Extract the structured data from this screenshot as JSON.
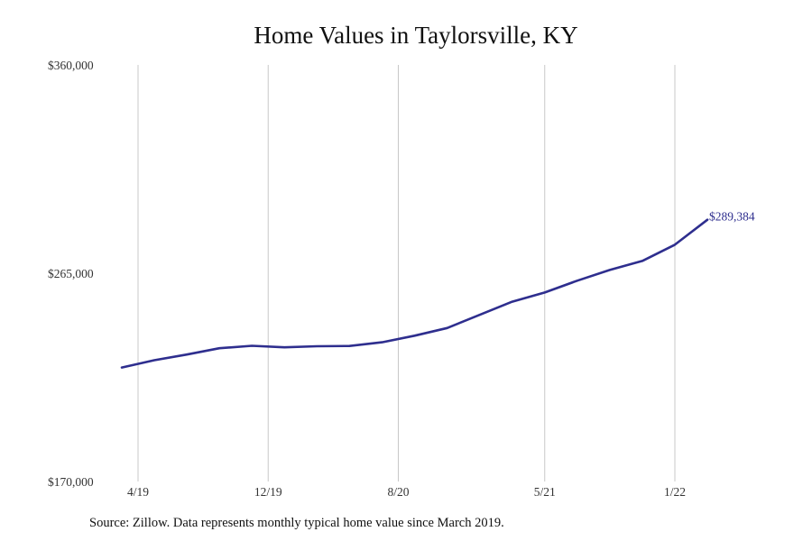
{
  "chart_data": {
    "type": "line",
    "title": "Home Values in Taylorsville, KY",
    "xlabel": "",
    "ylabel": "",
    "ylim": [
      170000,
      360000
    ],
    "y_ticks": [
      "$360,000",
      "$265,000",
      "$170,000"
    ],
    "y_tick_values": [
      360000,
      265000,
      170000
    ],
    "x_ticks": [
      "4/19",
      "12/19",
      "8/20",
      "5/21",
      "1/22"
    ],
    "x_tick_dates": [
      "2019-04",
      "2019-12",
      "2020-08",
      "2021-05",
      "2022-01"
    ],
    "grid": "vertical",
    "line_color": "#2e2e8e",
    "gridline_color": "#c8c8c8",
    "series": [
      {
        "x": [
          "2019-03",
          "2019-05",
          "2019-07",
          "2019-09",
          "2019-11",
          "2020-01",
          "2020-03",
          "2020-05",
          "2020-07",
          "2020-09",
          "2020-11",
          "2021-01",
          "2021-03",
          "2021-05",
          "2021-07",
          "2021-09",
          "2021-11",
          "2022-01",
          "2022-03"
        ],
        "values": [
          222000,
          225300,
          227900,
          230800,
          231900,
          231200,
          231700,
          231800,
          233500,
          236500,
          240000,
          246000,
          252000,
          256200,
          261600,
          266500,
          270600,
          278000,
          289384
        ]
      }
    ],
    "end_label": "$289,384"
  },
  "footer": {
    "source": "Source: Zillow. Data represents monthly typical home value since March 2019."
  }
}
